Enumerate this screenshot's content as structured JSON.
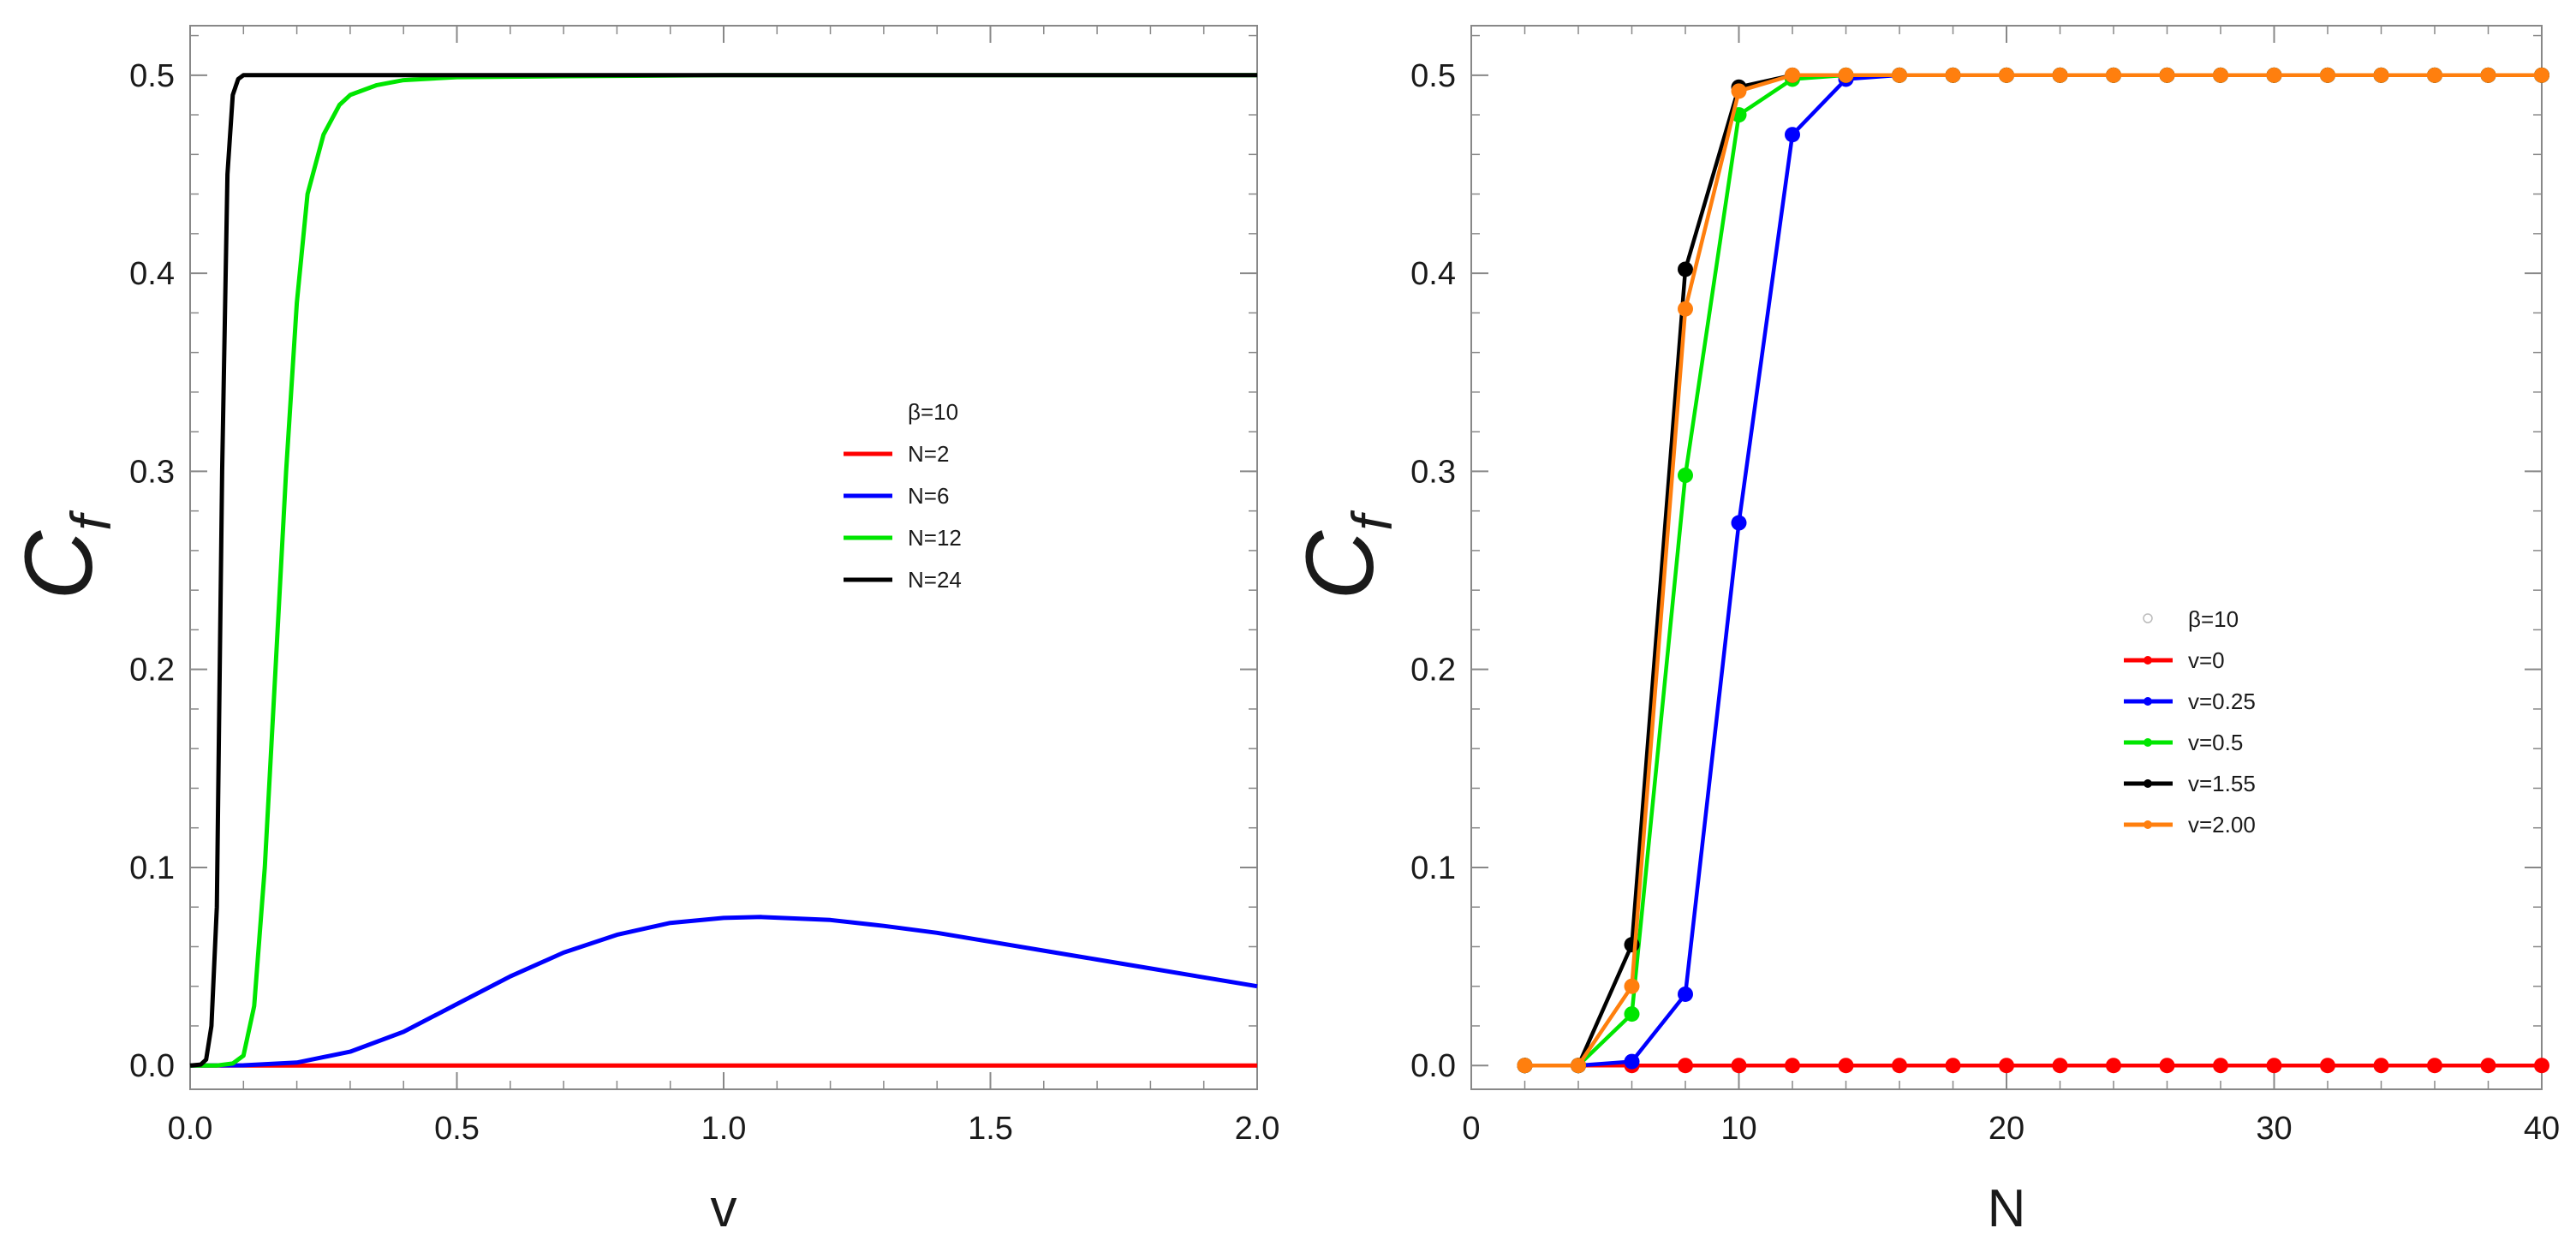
{
  "chart_data": [
    {
      "type": "line",
      "title": "",
      "xlabel": "v",
      "ylabel": "C",
      "ylabel_sub": "f",
      "xlim": [
        0,
        2
      ],
      "ylim": [
        -0.012,
        0.525
      ],
      "xticks": [
        0.0,
        0.5,
        1.0,
        1.5,
        2.0
      ],
      "xtick_labels": [
        "0.0",
        "0.5",
        "1.0",
        "1.5",
        "2.0"
      ],
      "yticks": [
        0.0,
        0.1,
        0.2,
        0.3,
        0.4,
        0.5
      ],
      "ytick_labels": [
        "0.0",
        "0.1",
        "0.2",
        "0.3",
        "0.4",
        "0.5"
      ],
      "grid": false,
      "legend_position": "center-right",
      "legend_title": "β=10",
      "series": [
        {
          "name": "N=2",
          "color": "#ff0000",
          "x": [
            0,
            0.5,
            1.0,
            1.5,
            2.0
          ],
          "y": [
            0,
            0,
            0,
            0,
            0
          ]
        },
        {
          "name": "N=6",
          "color": "#0000ff",
          "x": [
            0,
            0.1,
            0.2,
            0.3,
            0.4,
            0.5,
            0.6,
            0.7,
            0.8,
            0.9,
            1.0,
            1.07,
            1.2,
            1.3,
            1.4,
            1.5,
            1.6,
            1.7,
            1.8,
            1.9,
            2.0
          ],
          "y": [
            0,
            0.0001,
            0.0015,
            0.007,
            0.017,
            0.031,
            0.045,
            0.057,
            0.066,
            0.072,
            0.0745,
            0.075,
            0.0735,
            0.0705,
            0.067,
            0.0625,
            0.058,
            0.0535,
            0.049,
            0.0445,
            0.04
          ]
        },
        {
          "name": "N=12",
          "color": "#00e600",
          "x": [
            0,
            0.05,
            0.08,
            0.1,
            0.12,
            0.14,
            0.16,
            0.18,
            0.2,
            0.22,
            0.25,
            0.28,
            0.3,
            0.35,
            0.4,
            0.5,
            0.7,
            1.0,
            1.5,
            2.0
          ],
          "y": [
            0,
            0,
            0.001,
            0.005,
            0.03,
            0.1,
            0.2,
            0.3,
            0.385,
            0.44,
            0.47,
            0.485,
            0.49,
            0.495,
            0.4975,
            0.499,
            0.4995,
            0.5,
            0.5,
            0.5
          ]
        },
        {
          "name": "N=24",
          "color": "#000000",
          "x": [
            0,
            0.02,
            0.03,
            0.04,
            0.05,
            0.06,
            0.07,
            0.08,
            0.09,
            0.1,
            0.15,
            0.5,
            1.0,
            1.5,
            2.0
          ],
          "y": [
            0,
            0.0005,
            0.003,
            0.02,
            0.08,
            0.3,
            0.45,
            0.49,
            0.498,
            0.5,
            0.5,
            0.5,
            0.5,
            0.5,
            0.5
          ]
        }
      ]
    },
    {
      "type": "line",
      "title": "",
      "xlabel": "N",
      "ylabel": "C",
      "ylabel_sub": "f",
      "xlim": [
        0,
        40
      ],
      "ylim": [
        -0.012,
        0.525
      ],
      "xticks": [
        0,
        10,
        20,
        30,
        40
      ],
      "xtick_labels": [
        "0",
        "10",
        "20",
        "30",
        "40"
      ],
      "yticks": [
        0.0,
        0.1,
        0.2,
        0.3,
        0.4,
        0.5
      ],
      "ytick_labels": [
        "0.0",
        "0.1",
        "0.2",
        "0.3",
        "0.4",
        "0.5"
      ],
      "grid": false,
      "legend_position": "center-right",
      "legend_title": "β=10",
      "markers": true,
      "series": [
        {
          "name": "v=0",
          "color": "#ff0000",
          "x": [
            2,
            4,
            6,
            8,
            10,
            12,
            14,
            16,
            18,
            20,
            22,
            24,
            26,
            28,
            30,
            32,
            34,
            36,
            38,
            40
          ],
          "y": [
            0,
            0,
            0,
            0,
            0,
            0,
            0,
            0,
            0,
            0,
            0,
            0,
            0,
            0,
            0,
            0,
            0,
            0,
            0,
            0
          ]
        },
        {
          "name": "v=0.25",
          "color": "#0000ff",
          "x": [
            2,
            4,
            6,
            8,
            10,
            12,
            14,
            16,
            18,
            20,
            22,
            24,
            26,
            28,
            30,
            32,
            34,
            36,
            38,
            40
          ],
          "y": [
            0,
            0,
            0.002,
            0.036,
            0.274,
            0.47,
            0.498,
            0.5,
            0.5,
            0.5,
            0.5,
            0.5,
            0.5,
            0.5,
            0.5,
            0.5,
            0.5,
            0.5,
            0.5,
            0.5
          ]
        },
        {
          "name": "v=0.5",
          "color": "#00e600",
          "x": [
            2,
            4,
            6,
            8,
            10,
            12,
            14,
            16,
            18,
            20,
            22,
            24,
            26,
            28,
            30,
            32,
            34,
            36,
            38,
            40
          ],
          "y": [
            0,
            0,
            0.026,
            0.298,
            0.48,
            0.498,
            0.5,
            0.5,
            0.5,
            0.5,
            0.5,
            0.5,
            0.5,
            0.5,
            0.5,
            0.5,
            0.5,
            0.5,
            0.5,
            0.5
          ]
        },
        {
          "name": "v=1.55",
          "color": "#000000",
          "x": [
            2,
            4,
            6,
            8,
            10,
            12,
            14,
            16,
            18,
            20,
            22,
            24,
            26,
            28,
            30,
            32,
            34,
            36,
            38,
            40
          ],
          "y": [
            0,
            0,
            0.061,
            0.402,
            0.494,
            0.5,
            0.5,
            0.5,
            0.5,
            0.5,
            0.5,
            0.5,
            0.5,
            0.5,
            0.5,
            0.5,
            0.5,
            0.5,
            0.5,
            0.5
          ]
        },
        {
          "name": "v=2.00",
          "color": "#ff7f0e",
          "x": [
            2,
            4,
            6,
            8,
            10,
            12,
            14,
            16,
            18,
            20,
            22,
            24,
            26,
            28,
            30,
            32,
            34,
            36,
            38,
            40
          ],
          "y": [
            0,
            0,
            0.04,
            0.382,
            0.492,
            0.5,
            0.5,
            0.5,
            0.5,
            0.5,
            0.5,
            0.5,
            0.5,
            0.5,
            0.5,
            0.5,
            0.5,
            0.5,
            0.5,
            0.5
          ]
        }
      ]
    }
  ]
}
